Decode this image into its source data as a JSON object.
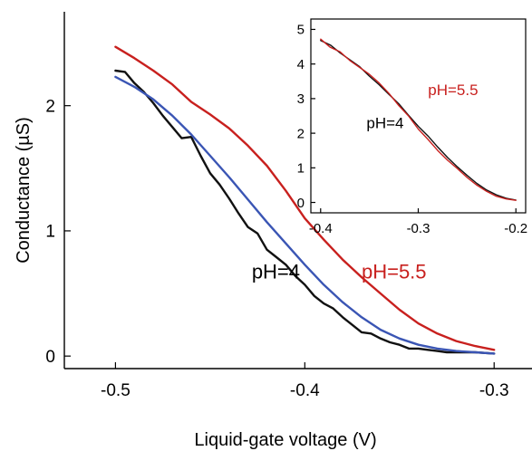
{
  "chart_data": [
    {
      "type": "line",
      "xlabel": "Liquid-gate voltage (V)",
      "ylabel": "Conductance (µS)",
      "xlim": [
        -0.527,
        -0.28
      ],
      "ylim": [
        -0.1,
        2.75
      ],
      "xticks": [
        -0.5,
        -0.4,
        -0.3
      ],
      "xtick_labels": [
        "-0.5",
        "-0.4",
        "-0.3"
      ],
      "yticks": [
        0,
        1,
        2
      ],
      "ytick_labels": [
        "0",
        "1",
        "2"
      ],
      "grid": false,
      "annotations": [
        {
          "text": "pH=4",
          "color": "#000000",
          "x": -0.428,
          "y": 0.62
        },
        {
          "text": "pH=5.5",
          "color": "#c8201e",
          "x": -0.37,
          "y": 0.62
        }
      ],
      "series": [
        {
          "name": "pH=5.5",
          "color": "#c8201e",
          "x": [
            -0.5,
            -0.49,
            -0.48,
            -0.47,
            -0.46,
            -0.45,
            -0.44,
            -0.43,
            -0.42,
            -0.41,
            -0.4,
            -0.39,
            -0.38,
            -0.37,
            -0.36,
            -0.35,
            -0.34,
            -0.33,
            -0.32,
            -0.31,
            -0.3
          ],
          "y": [
            2.47,
            2.38,
            2.28,
            2.17,
            2.03,
            1.93,
            1.82,
            1.68,
            1.52,
            1.32,
            1.1,
            0.93,
            0.77,
            0.63,
            0.5,
            0.37,
            0.26,
            0.18,
            0.12,
            0.08,
            0.05
          ]
        },
        {
          "name": "pH=4",
          "color": "#111111",
          "x": [
            -0.5,
            -0.495,
            -0.49,
            -0.485,
            -0.48,
            -0.475,
            -0.47,
            -0.465,
            -0.46,
            -0.455,
            -0.45,
            -0.445,
            -0.44,
            -0.435,
            -0.43,
            -0.425,
            -0.42,
            -0.415,
            -0.41,
            -0.405,
            -0.4,
            -0.395,
            -0.39,
            -0.385,
            -0.38,
            -0.375,
            -0.37,
            -0.365,
            -0.36,
            -0.355,
            -0.35,
            -0.345,
            -0.34,
            -0.335,
            -0.33,
            -0.325,
            -0.32,
            -0.31,
            -0.3
          ],
          "y": [
            2.28,
            2.27,
            2.18,
            2.11,
            2.02,
            1.92,
            1.83,
            1.74,
            1.75,
            1.6,
            1.46,
            1.37,
            1.26,
            1.14,
            1.03,
            0.98,
            0.85,
            0.79,
            0.73,
            0.64,
            0.57,
            0.48,
            0.42,
            0.38,
            0.31,
            0.25,
            0.19,
            0.18,
            0.14,
            0.11,
            0.09,
            0.06,
            0.06,
            0.05,
            0.04,
            0.03,
            0.03,
            0.03,
            0.02
          ]
        },
        {
          "name": "",
          "color": "#3a55b4",
          "x": [
            -0.5,
            -0.49,
            -0.48,
            -0.47,
            -0.46,
            -0.45,
            -0.44,
            -0.43,
            -0.42,
            -0.41,
            -0.4,
            -0.39,
            -0.38,
            -0.37,
            -0.36,
            -0.35,
            -0.34,
            -0.33,
            -0.32,
            -0.31,
            -0.3
          ],
          "y": [
            2.23,
            2.15,
            2.05,
            1.92,
            1.77,
            1.6,
            1.43,
            1.25,
            1.07,
            0.9,
            0.73,
            0.57,
            0.43,
            0.31,
            0.21,
            0.14,
            0.09,
            0.06,
            0.04,
            0.03,
            0.02
          ]
        }
      ]
    },
    {
      "type": "line",
      "xlabel": "",
      "ylabel": "",
      "xlim": [
        -0.41,
        -0.19
      ],
      "ylim": [
        -0.3,
        5.3
      ],
      "xticks": [
        -0.4,
        -0.3,
        -0.2
      ],
      "xtick_labels": [
        "-0.4",
        "-0.3",
        "-0.2"
      ],
      "yticks": [
        0,
        1,
        2,
        3,
        4,
        5
      ],
      "ytick_labels": [
        "0",
        "1",
        "2",
        "3",
        "4",
        "5"
      ],
      "grid": false,
      "annotations": [
        {
          "text": "pH=5.5",
          "color": "#c8201e",
          "x": -0.29,
          "y": 3.1
        },
        {
          "text": "pH=4",
          "color": "#000000",
          "x": -0.353,
          "y": 2.15
        }
      ],
      "series": [
        {
          "name": "pH=4",
          "color": "#111111",
          "x": [
            -0.4,
            -0.39,
            -0.38,
            -0.37,
            -0.36,
            -0.35,
            -0.34,
            -0.33,
            -0.32,
            -0.31,
            -0.3,
            -0.29,
            -0.28,
            -0.27,
            -0.26,
            -0.25,
            -0.24,
            -0.23,
            -0.22,
            -0.21,
            -0.2
          ],
          "y": [
            4.68,
            4.55,
            4.32,
            4.12,
            3.92,
            3.65,
            3.4,
            3.12,
            2.85,
            2.52,
            2.2,
            1.92,
            1.6,
            1.3,
            1.03,
            0.78,
            0.55,
            0.36,
            0.22,
            0.12,
            0.07
          ]
        },
        {
          "name": "pH=5.5",
          "color": "#c8201e",
          "x": [
            -0.4,
            -0.39,
            -0.38,
            -0.37,
            -0.36,
            -0.35,
            -0.34,
            -0.33,
            -0.32,
            -0.31,
            -0.3,
            -0.29,
            -0.28,
            -0.27,
            -0.26,
            -0.25,
            -0.24,
            -0.23,
            -0.22,
            -0.21,
            -0.2
          ],
          "y": [
            4.72,
            4.48,
            4.35,
            4.1,
            3.9,
            3.7,
            3.45,
            3.15,
            2.8,
            2.5,
            2.12,
            1.82,
            1.5,
            1.22,
            0.98,
            0.72,
            0.5,
            0.32,
            0.18,
            0.1,
            0.06
          ]
        }
      ]
    }
  ]
}
